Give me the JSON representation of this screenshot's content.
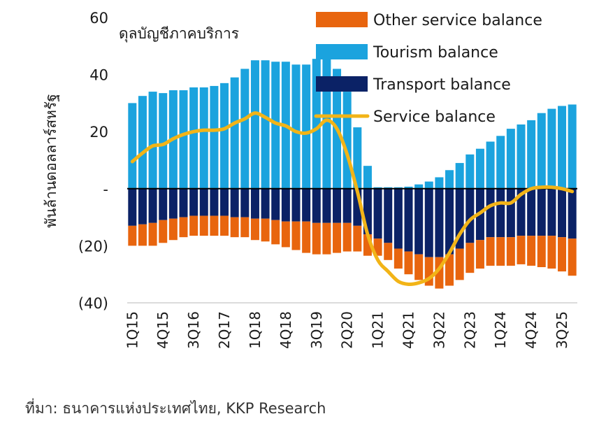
{
  "chart_data": {
    "type": "bar",
    "stacked": true,
    "subtitle": "ดุลบัญชีภาคบริการ",
    "ylabel": "พันล้านดอลลาร์สหรัฐ",
    "xlabel": "",
    "ylim": [
      -40,
      60
    ],
    "yticks": [
      {
        "value": 60,
        "label": "60"
      },
      {
        "value": 40,
        "label": "40"
      },
      {
        "value": 20,
        "label": "20"
      },
      {
        "value": 0,
        "label": "-"
      },
      {
        "value": -20,
        "label": "(20)"
      },
      {
        "value": -40,
        "label": "(40)"
      }
    ],
    "categories": [
      "1Q15",
      "2Q15",
      "3Q15",
      "4Q15",
      "1Q16",
      "2Q16",
      "3Q16",
      "4Q16",
      "1Q17",
      "2Q17",
      "3Q17",
      "4Q17",
      "1Q18",
      "2Q18",
      "3Q18",
      "4Q18",
      "1Q19",
      "2Q19",
      "3Q19",
      "4Q19",
      "1Q20",
      "2Q20",
      "3Q20",
      "4Q20",
      "1Q21",
      "2Q21",
      "3Q21",
      "4Q21",
      "1Q22",
      "2Q22",
      "3Q22",
      "4Q22",
      "1Q23",
      "2Q23",
      "3Q23",
      "4Q23",
      "1Q24",
      "2Q24",
      "3Q24",
      "4Q24",
      "1Q25",
      "2Q25",
      "3Q25",
      "4Q25"
    ],
    "tick_labels": [
      "1Q15",
      "",
      "",
      "4Q15",
      "",
      "",
      "3Q16",
      "",
      "",
      "2Q17",
      "",
      "",
      "1Q18",
      "",
      "",
      "4Q18",
      "",
      "",
      "3Q19",
      "",
      "",
      "2Q20",
      "",
      "",
      "1Q21",
      "",
      "",
      "4Q21",
      "",
      "",
      "3Q22",
      "",
      "",
      "2Q23",
      "",
      "",
      "1Q24",
      "",
      "",
      "4Q24",
      "",
      "",
      "3Q25",
      ""
    ],
    "legend_position": "top-right",
    "grid": false,
    "series": [
      {
        "name": "Other service balance",
        "kind": "bar",
        "color": "#E8650E",
        "values": [
          -7,
          -7.5,
          -8,
          -8,
          -7.5,
          -7,
          -7,
          -7,
          -7,
          -7,
          -7,
          -7,
          -7.5,
          -8,
          -8.5,
          -9,
          -10,
          -11,
          -11,
          -11,
          -10.5,
          -10,
          -9,
          -7.5,
          -6,
          -6,
          -7,
          -8,
          -9,
          -10,
          -11,
          -11,
          -11,
          -10.5,
          -10,
          -10,
          -10,
          -10,
          -10,
          -10.5,
          -11,
          -11.5,
          -12,
          -13
        ]
      },
      {
        "name": "Tourism balance",
        "kind": "bar",
        "color": "#1BA3DE",
        "values": [
          30,
          32.5,
          34,
          33.5,
          34.5,
          34.5,
          35.5,
          35.5,
          36,
          37,
          39,
          42,
          45,
          45,
          44.5,
          44.5,
          43.5,
          43.5,
          45.5,
          47,
          42,
          34,
          21.5,
          8,
          0.5,
          0.5,
          0.5,
          0.7,
          1.5,
          2.5,
          4,
          6.5,
          9,
          12,
          14,
          16.5,
          18.5,
          21,
          22.5,
          24,
          26.5,
          28,
          29,
          29.5
        ]
      },
      {
        "name": "Transport balance",
        "kind": "bar",
        "color": "#0B2266",
        "values": [
          -13,
          -12.5,
          -12,
          -11,
          -10.5,
          -10,
          -9.5,
          -9.5,
          -9.5,
          -9.5,
          -10,
          -10,
          -10.5,
          -10.5,
          -11,
          -11.5,
          -11.5,
          -11.5,
          -12,
          -12,
          -12,
          -12,
          -13,
          -16,
          -17.5,
          -19,
          -21,
          -22,
          -23,
          -24,
          -24,
          -23,
          -21,
          -19,
          -18,
          -17,
          -17,
          -17,
          -16.5,
          -16.5,
          -16.5,
          -16.5,
          -17,
          -17.5
        ]
      },
      {
        "name": "Service balance",
        "kind": "line",
        "color": "#F2B417",
        "values": [
          9.5,
          12.5,
          15,
          15.5,
          17.5,
          19,
          20,
          20.5,
          20.5,
          21,
          23,
          24.5,
          26.5,
          25,
          23,
          22,
          20,
          19.5,
          21,
          24,
          21,
          12,
          -1,
          -16,
          -25,
          -29,
          -32.5,
          -33.5,
          -33,
          -31.5,
          -28,
          -22.5,
          -16,
          -11,
          -8.5,
          -6,
          -5,
          -5,
          -2,
          0,
          0.5,
          0.5,
          0,
          -1
        ]
      }
    ]
  },
  "source": "ที่มา: ธนาคารแห่งประเทศไทย, KKP Research"
}
